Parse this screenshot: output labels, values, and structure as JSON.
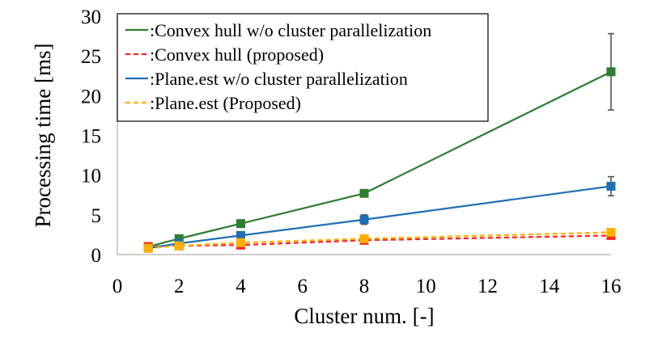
{
  "chart_data": {
    "type": "line",
    "title": "",
    "xlabel": "Cluster num. [-]",
    "ylabel": "Processing time [ms]",
    "xlim": [
      0,
      16
    ],
    "ylim": [
      0,
      30
    ],
    "x_ticks": [
      0,
      2,
      4,
      6,
      8,
      10,
      12,
      14,
      16
    ],
    "y_ticks": [
      0,
      5,
      10,
      15,
      20,
      25,
      30
    ],
    "grid": false,
    "legend_position": "top-left",
    "series": [
      {
        "name": ":Convex hull w/o cluster parallelization",
        "color": "#2e7d32",
        "dash": "solid",
        "marker": "square",
        "x": [
          1,
          2,
          4,
          8,
          16
        ],
        "y": [
          1.0,
          2.0,
          3.9,
          7.7,
          23.0
        ],
        "error": [
          0.2,
          0.2,
          0.3,
          0.3,
          4.8
        ]
      },
      {
        "name": ":Convex hull (proposed)",
        "color": "#ff2020",
        "dash": "dashed",
        "marker": "square",
        "x": [
          1,
          2,
          4,
          8,
          16
        ],
        "y": [
          1.0,
          1.1,
          1.2,
          1.8,
          2.4
        ],
        "error": [
          0.2,
          0.1,
          0.1,
          0.2,
          0.3
        ]
      },
      {
        "name": ":Plane.est w/o cluster parallelization",
        "color": "#1f6fb4",
        "dash": "solid",
        "marker": "square",
        "x": [
          1,
          2,
          4,
          8,
          16
        ],
        "y": [
          0.8,
          1.4,
          2.4,
          4.4,
          8.6
        ],
        "error": [
          0.1,
          0.2,
          0.2,
          0.6,
          1.2
        ]
      },
      {
        "name": ":Plane.est (Proposed)",
        "color": "#ffb000",
        "dash": "dashed",
        "marker": "square",
        "x": [
          1,
          2,
          4,
          8,
          16
        ],
        "y": [
          0.8,
          1.1,
          1.5,
          2.0,
          2.8
        ],
        "error": [
          0.1,
          0.1,
          0.1,
          0.2,
          0.4
        ]
      }
    ]
  }
}
